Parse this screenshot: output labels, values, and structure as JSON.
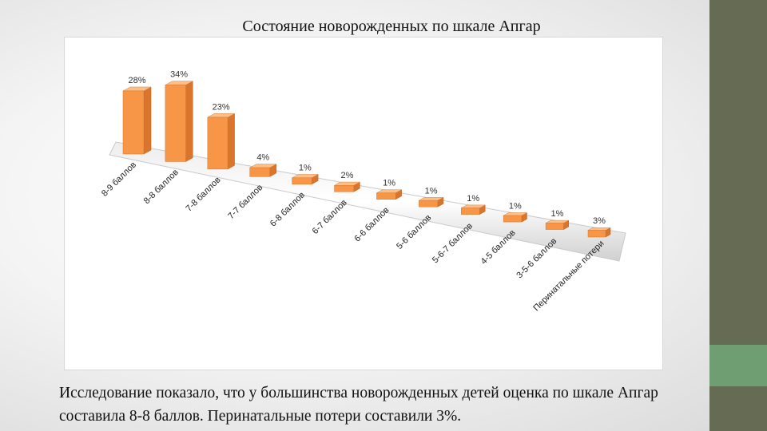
{
  "slide": {
    "title": "Состояние новорожденных по шкале Апгар",
    "caption": "Исследование показало, что у большинства новорожденных детей оценка по шкале Апгар составила 8-8 баллов. Перинатальные потери составили 3%."
  },
  "colors": {
    "bar_front": "#f79646",
    "bar_side": "#d9752c",
    "bar_top": "#fbbf8a",
    "side_bar": "#666b54",
    "side_accent": "#6e9e72"
  },
  "chart_data": {
    "type": "bar",
    "title": "",
    "xlabel": "",
    "ylabel": "",
    "ylim": [
      0,
      34
    ],
    "grid": false,
    "legend": "none",
    "categories": [
      "8-9 баллов",
      "8-8 баллов",
      "7-8 баллов",
      "7-7 баллов",
      "6-8 баллов",
      "6-7 баллов",
      "6-6 баллов",
      "5-6 баллов",
      "5-6-7 баллов",
      "4-5 баллов",
      "3-5-6 баллов",
      "Перинатальные потери"
    ],
    "values": [
      28,
      34,
      23,
      4,
      1,
      2,
      1,
      1,
      1,
      1,
      1,
      3
    ],
    "data_labels": [
      "28%",
      "34%",
      "23%",
      "4%",
      "1%",
      "2%",
      "1%",
      "1%",
      "1%",
      "1%",
      "1%",
      "3%"
    ]
  }
}
